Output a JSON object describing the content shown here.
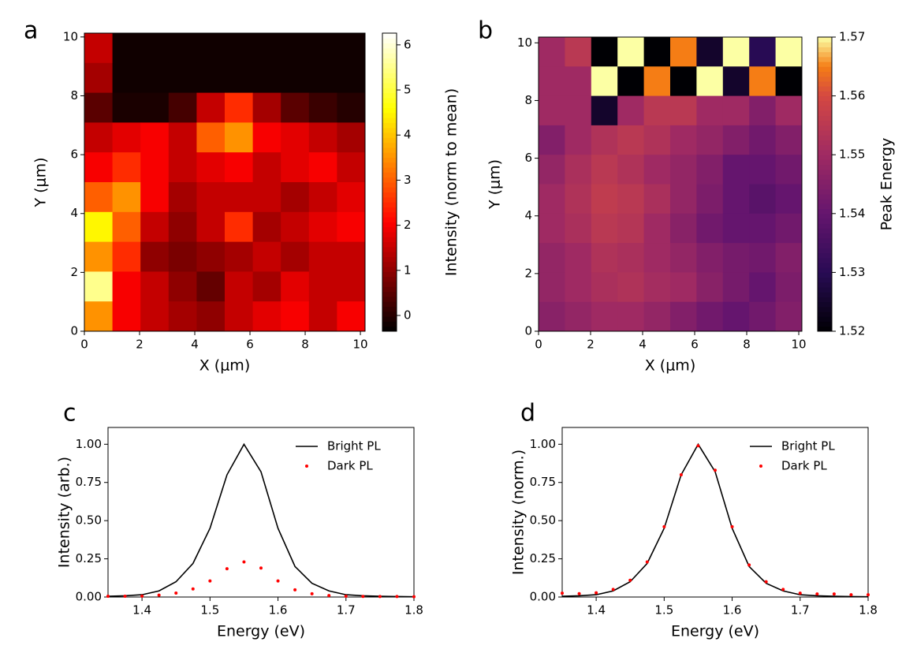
{
  "chart_data": [
    {
      "type": "heatmap",
      "letter": "a",
      "xlabel": "X (μm)",
      "ylabel": "Y (μm)",
      "colorbar_label": "Intensity (norm to mean)",
      "colormap": "hot",
      "xlim": [
        0,
        10.17
      ],
      "ylim": [
        0,
        10.13
      ],
      "xticks": [
        0,
        2,
        4,
        6,
        8,
        10
      ],
      "yticks": [
        0,
        2,
        4,
        6,
        8,
        10
      ],
      "zlim": [
        -0.35,
        6.26
      ],
      "zticks": [
        0,
        1,
        2,
        3,
        4,
        5,
        6
      ],
      "z": [
        [
          1.5,
          -0.2,
          -0.2,
          -0.2,
          -0.2,
          -0.2,
          -0.2,
          -0.2,
          -0.2,
          -0.2
        ],
        [
          1.2,
          -0.2,
          -0.2,
          -0.2,
          -0.2,
          -0.2,
          -0.2,
          -0.2,
          -0.2,
          -0.2
        ],
        [
          0.5,
          -0.1,
          -0.1,
          0.3,
          1.5,
          2.5,
          1.2,
          0.5,
          0.2,
          0.0
        ],
        [
          1.5,
          1.8,
          2.0,
          1.5,
          3.0,
          3.5,
          2.0,
          1.8,
          1.5,
          1.2
        ],
        [
          2.0,
          2.5,
          2.0,
          1.5,
          1.8,
          2.0,
          1.5,
          1.8,
          2.0,
          1.5
        ],
        [
          3.0,
          3.5,
          2.0,
          1.2,
          1.5,
          1.5,
          1.5,
          1.2,
          1.5,
          1.8
        ],
        [
          4.5,
          3.0,
          1.5,
          1.0,
          1.5,
          2.5,
          1.2,
          1.5,
          1.8,
          2.0
        ],
        [
          3.5,
          2.5,
          1.0,
          0.8,
          1.0,
          1.2,
          1.5,
          1.2,
          1.5,
          1.5
        ],
        [
          5.5,
          2.0,
          1.5,
          1.0,
          0.6,
          1.5,
          1.2,
          1.8,
          1.5,
          1.5
        ],
        [
          3.5,
          2.0,
          1.5,
          1.2,
          1.0,
          1.5,
          1.8,
          2.0,
          1.5,
          2.0
        ]
      ]
    },
    {
      "type": "heatmap",
      "letter": "b",
      "xlabel": "X (μm)",
      "ylabel": "Y (μm)",
      "colorbar_label": "Peak Energy",
      "colormap": "inferno",
      "xlim": [
        0,
        10.12
      ],
      "ylim": [
        0,
        10.2
      ],
      "xticks": [
        0,
        2,
        4,
        6,
        8,
        10
      ],
      "yticks": [
        0,
        2,
        4,
        6,
        8,
        10
      ],
      "zlim": [
        1.52,
        1.57
      ],
      "zticks": [
        1.52,
        1.53,
        1.54,
        1.55,
        1.56,
        1.57
      ],
      "z": [
        [
          1.55,
          1.555,
          1.52,
          1.57,
          1.52,
          1.565,
          1.525,
          1.57,
          1.53,
          1.57
        ],
        [
          1.55,
          1.55,
          1.57,
          1.52,
          1.565,
          1.52,
          1.57,
          1.525,
          1.565,
          1.52
        ],
        [
          1.55,
          1.55,
          1.525,
          1.55,
          1.555,
          1.555,
          1.55,
          1.55,
          1.545,
          1.55
        ],
        [
          1.545,
          1.55,
          1.553,
          1.555,
          1.553,
          1.55,
          1.548,
          1.545,
          1.542,
          1.545
        ],
        [
          1.548,
          1.552,
          1.555,
          1.553,
          1.55,
          1.548,
          1.545,
          1.54,
          1.54,
          1.542
        ],
        [
          1.55,
          1.553,
          1.556,
          1.555,
          1.552,
          1.548,
          1.544,
          1.54,
          1.538,
          1.54
        ],
        [
          1.55,
          1.552,
          1.555,
          1.554,
          1.55,
          1.546,
          1.542,
          1.54,
          1.54,
          1.542
        ],
        [
          1.548,
          1.55,
          1.553,
          1.552,
          1.55,
          1.548,
          1.545,
          1.543,
          1.542,
          1.545
        ],
        [
          1.548,
          1.55,
          1.552,
          1.553,
          1.551,
          1.55,
          1.546,
          1.543,
          1.54,
          1.544
        ],
        [
          1.546,
          1.548,
          1.55,
          1.55,
          1.548,
          1.545,
          1.542,
          1.54,
          1.542,
          1.545
        ]
      ]
    },
    {
      "type": "line",
      "letter": "c",
      "xlabel": "Energy (eV)",
      "ylabel": "Intensity (arb.)",
      "legend": "upper right",
      "xlim": [
        1.35,
        1.8
      ],
      "ylim": [
        0,
        1.11
      ],
      "xticks": [
        1.4,
        1.5,
        1.6,
        1.7,
        1.8
      ],
      "yticks": [
        {
          "value": 0,
          "label": "0.00"
        },
        {
          "value": 0.25,
          "label": "0.25"
        },
        {
          "value": 0.5,
          "label": "0.50"
        },
        {
          "value": 0.75,
          "label": "0.75"
        },
        {
          "value": 1,
          "label": "1.00"
        }
      ],
      "x": [
        1.35,
        1.375,
        1.4,
        1.425,
        1.45,
        1.475,
        1.5,
        1.525,
        1.55,
        1.575,
        1.6,
        1.625,
        1.65,
        1.675,
        1.7,
        1.725,
        1.75,
        1.775,
        1.8
      ],
      "series": [
        {
          "name": "Bright PL",
          "color": "#000000",
          "mode": "line",
          "values": [
            0.005,
            0.008,
            0.015,
            0.04,
            0.1,
            0.22,
            0.45,
            0.8,
            1.0,
            0.82,
            0.45,
            0.2,
            0.09,
            0.04,
            0.015,
            0.008,
            0.005,
            0.003,
            0.002
          ]
        },
        {
          "name": "Dark PL",
          "color": "#ff0000",
          "mode": "markers",
          "values": [
            0.005,
            0.005,
            0.006,
            0.012,
            0.026,
            0.053,
            0.105,
            0.185,
            0.23,
            0.19,
            0.105,
            0.047,
            0.021,
            0.01,
            0.005,
            0.004,
            0.003,
            0.003,
            0.002
          ]
        }
      ]
    },
    {
      "type": "line",
      "letter": "d",
      "xlabel": "Energy (eV)",
      "ylabel": "Intensity (norm.)",
      "legend": "upper right",
      "xlim": [
        1.35,
        1.8
      ],
      "ylim": [
        0,
        1.11
      ],
      "xticks": [
        1.4,
        1.5,
        1.6,
        1.7,
        1.8
      ],
      "yticks": [
        {
          "value": 0,
          "label": "0.00"
        },
        {
          "value": 0.25,
          "label": "0.25"
        },
        {
          "value": 0.5,
          "label": "0.50"
        },
        {
          "value": 0.75,
          "label": "0.75"
        },
        {
          "value": 1,
          "label": "1.00"
        }
      ],
      "x": [
        1.35,
        1.375,
        1.4,
        1.425,
        1.45,
        1.475,
        1.5,
        1.525,
        1.55,
        1.575,
        1.6,
        1.625,
        1.65,
        1.675,
        1.7,
        1.725,
        1.75,
        1.775,
        1.8
      ],
      "series": [
        {
          "name": "Bright PL",
          "color": "#000000",
          "mode": "line",
          "values": [
            0.005,
            0.008,
            0.015,
            0.04,
            0.1,
            0.22,
            0.45,
            0.8,
            1.0,
            0.82,
            0.45,
            0.2,
            0.09,
            0.04,
            0.015,
            0.008,
            0.005,
            0.003,
            0.002
          ]
        },
        {
          "name": "Dark PL",
          "color": "#ff0000",
          "mode": "markers",
          "values": [
            0.025,
            0.022,
            0.028,
            0.05,
            0.11,
            0.23,
            0.46,
            0.8,
            0.99,
            0.83,
            0.46,
            0.21,
            0.1,
            0.05,
            0.025,
            0.02,
            0.02,
            0.015,
            0.015
          ]
        }
      ]
    }
  ]
}
